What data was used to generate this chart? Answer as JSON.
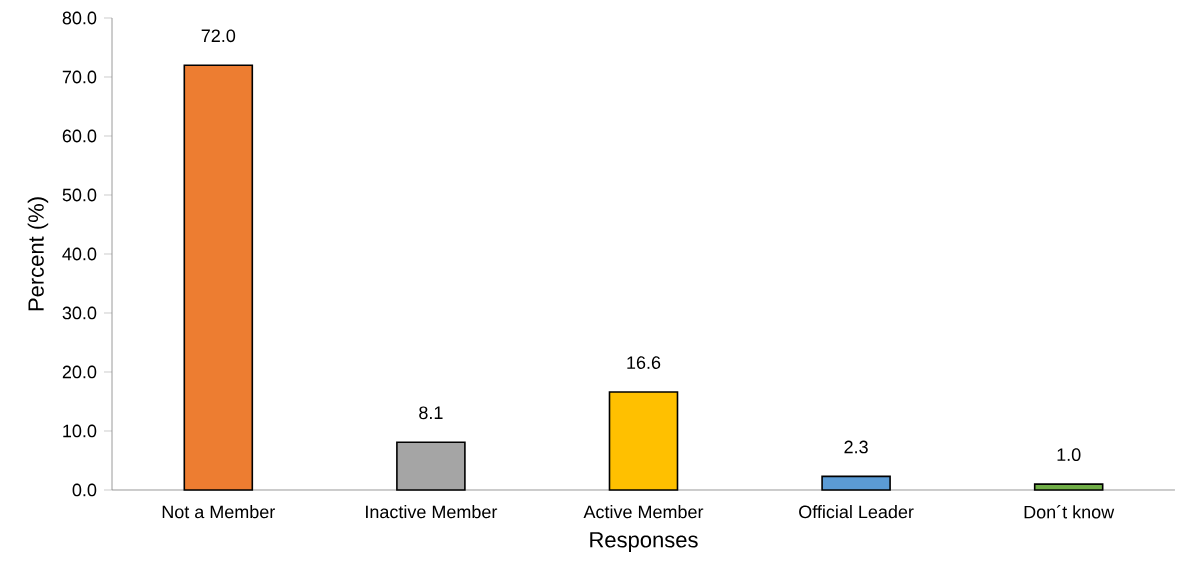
{
  "chart_data": {
    "type": "bar",
    "xlabel": "Responses",
    "ylabel": "Percent (%)",
    "categories": [
      "Not a Member",
      "Inactive Member",
      "Active Member",
      "Official Leader",
      "Don´t know"
    ],
    "values": [
      72.0,
      8.1,
      16.6,
      2.3,
      1.0
    ],
    "colors": [
      "#ed7d31",
      "#a5a5a5",
      "#ffc000",
      "#5b9bd5",
      "#70ad47"
    ],
    "value_labels": [
      "72.0",
      "8.1",
      "16.6",
      "2.3",
      "1.0"
    ],
    "ylim": [
      0,
      80
    ],
    "yticks": [
      {
        "value": 0,
        "label": "0.0"
      },
      {
        "value": 10,
        "label": "10.0"
      },
      {
        "value": 20,
        "label": "20.0"
      },
      {
        "value": 30,
        "label": "30.0"
      },
      {
        "value": 40,
        "label": "40.0"
      },
      {
        "value": 50,
        "label": "50.0"
      },
      {
        "value": 60,
        "label": "60.0"
      },
      {
        "value": 70,
        "label": "70.0"
      },
      {
        "value": 80,
        "label": "80.0"
      }
    ]
  }
}
